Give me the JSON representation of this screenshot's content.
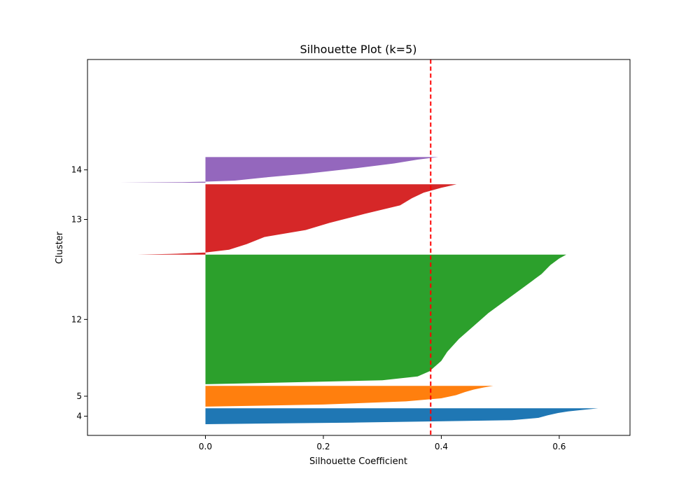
{
  "chart_data": {
    "type": "silhouette",
    "title": "Silhouette Plot (k=5)",
    "xlabel": "Silhouette Coefficient",
    "ylabel": "Cluster",
    "xlim": [
      -0.2,
      0.72
    ],
    "xticks": [
      0.0,
      0.2,
      0.4,
      0.6
    ],
    "xtick_labels": [
      "0.0",
      "0.2",
      "0.4",
      "0.6"
    ],
    "ylim": [
      -7,
      228
    ],
    "grid": false,
    "legend": "none",
    "mean_silhouette": 0.382,
    "mean_line_color": "#ff0000",
    "clusters": [
      {
        "label": "4",
        "color": "#1f77b4",
        "y_start": 0,
        "y_end": 10,
        "profile": [
          [
            0,
            0.666
          ],
          [
            0.05,
            0.655
          ],
          [
            0.12,
            0.636
          ],
          [
            0.2,
            0.615
          ],
          [
            0.3,
            0.598
          ],
          [
            0.45,
            0.58
          ],
          [
            0.6,
            0.565
          ],
          [
            0.75,
            0.52
          ],
          [
            0.9,
            0.25
          ],
          [
            1.0,
            0.0
          ]
        ]
      },
      {
        "label": "5",
        "color": "#ff7f0e",
        "y_start": 11,
        "y_end": 24,
        "profile": [
          [
            0,
            0.488
          ],
          [
            0.08,
            0.472
          ],
          [
            0.18,
            0.455
          ],
          [
            0.3,
            0.44
          ],
          [
            0.45,
            0.425
          ],
          [
            0.6,
            0.4
          ],
          [
            0.75,
            0.34
          ],
          [
            0.9,
            0.2
          ],
          [
            1.0,
            0.0
          ]
        ]
      },
      {
        "label": "12",
        "color": "#2ca02c",
        "y_start": 25,
        "y_end": 106,
        "profile": [
          [
            0,
            0.612
          ],
          [
            0.03,
            0.6
          ],
          [
            0.08,
            0.585
          ],
          [
            0.15,
            0.57
          ],
          [
            0.25,
            0.54
          ],
          [
            0.35,
            0.51
          ],
          [
            0.45,
            0.48
          ],
          [
            0.55,
            0.455
          ],
          [
            0.65,
            0.43
          ],
          [
            0.75,
            0.41
          ],
          [
            0.82,
            0.4
          ],
          [
            0.9,
            0.38
          ],
          [
            0.94,
            0.36
          ],
          [
            0.97,
            0.3
          ],
          [
            1.0,
            0.0
          ]
        ]
      },
      {
        "label": "13",
        "color": "#d62728",
        "y_start": 106,
        "y_end": 150,
        "profile": [
          [
            0,
            0.426
          ],
          [
            0.05,
            0.4
          ],
          [
            0.12,
            0.37
          ],
          [
            0.2,
            0.35
          ],
          [
            0.3,
            0.33
          ],
          [
            0.42,
            0.27
          ],
          [
            0.55,
            0.21
          ],
          [
            0.65,
            0.17
          ],
          [
            0.75,
            0.1
          ],
          [
            0.85,
            0.07
          ],
          [
            0.93,
            0.04
          ],
          [
            0.97,
            0.0
          ],
          [
            0.99,
            -0.06
          ],
          [
            1.0,
            -0.115
          ]
        ]
      },
      {
        "label": "14",
        "color": "#9467bd",
        "y_start": 151,
        "y_end": 167,
        "profile": [
          [
            0,
            0.395
          ],
          [
            0.1,
            0.36
          ],
          [
            0.25,
            0.32
          ],
          [
            0.45,
            0.25
          ],
          [
            0.65,
            0.17
          ],
          [
            0.8,
            0.1
          ],
          [
            0.92,
            0.05
          ],
          [
            0.96,
            0.0
          ],
          [
            0.98,
            -0.04
          ],
          [
            1.0,
            -0.145
          ]
        ]
      }
    ]
  }
}
